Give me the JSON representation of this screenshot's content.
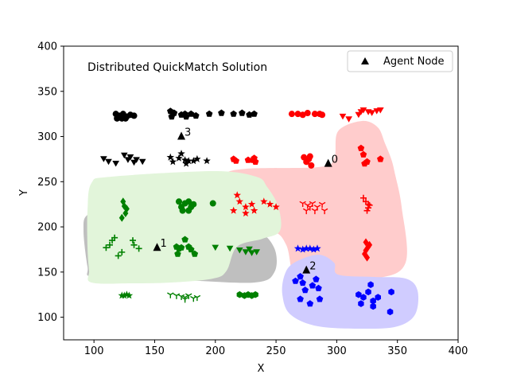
{
  "chart_data": {
    "type": "scatter",
    "title": "Distributed QuickMatch Solution",
    "xlabel": "X",
    "ylabel": "Y",
    "xlim": [
      75,
      400
    ],
    "ylim": [
      75,
      400
    ],
    "xticks": [
      100,
      150,
      200,
      250,
      300,
      350,
      400
    ],
    "yticks": [
      100,
      150,
      200,
      250,
      300,
      350,
      400
    ],
    "grid": false,
    "legend": {
      "placement": "top-right",
      "entries": [
        {
          "label": "Agent Node",
          "marker": "triangle",
          "color": "#000000"
        }
      ]
    },
    "agent_nodes": [
      {
        "label": "0",
        "x": 293,
        "y": 270
      },
      {
        "label": "1",
        "x": 152,
        "y": 177
      },
      {
        "label": "2",
        "x": 275,
        "y": 152
      },
      {
        "label": "3",
        "x": 172,
        "y": 300
      }
    ],
    "regions": [
      {
        "color": "#bfbfbf",
        "outline": [
          [
            115,
            348
          ],
          [
            170,
            350
          ],
          [
            230,
            352
          ],
          [
            320,
            355
          ],
          [
            345,
            342
          ],
          [
            345,
            312
          ],
          [
            322,
            290
          ],
          [
            270,
            287
          ],
          [
            247,
            278
          ],
          [
            208,
            266
          ],
          [
            140,
            263
          ],
          [
            110,
            270
          ],
          [
            105,
            290
          ],
          [
            110,
            335
          ]
        ]
      },
      {
        "color": "#ffcccc",
        "outline": [
          [
            283,
            290
          ],
          [
            340,
            290
          ],
          [
            360,
            308
          ],
          [
            370,
            350
          ],
          [
            392,
            352
          ],
          [
            472,
            350
          ],
          [
            510,
            330
          ],
          [
            505,
            260
          ],
          [
            497,
            220
          ],
          [
            492,
            200
          ],
          [
            484,
            180
          ],
          [
            475,
            160
          ],
          [
            455,
            152
          ],
          [
            425,
            165
          ],
          [
            420,
            200
          ],
          [
            400,
            210
          ],
          [
            310,
            212
          ],
          [
            280,
            220
          ],
          [
            276,
            240
          ],
          [
            278,
            270
          ]
        ]
      },
      {
        "color": "#e2f5da",
        "outline": [
          [
            115,
            355
          ],
          [
            165,
            356
          ],
          [
            215,
            355
          ],
          [
            268,
            350
          ],
          [
            285,
            340
          ],
          [
            298,
            310
          ],
          [
            330,
            300
          ],
          [
            352,
            290
          ],
          [
            350,
            260
          ],
          [
            336,
            235
          ],
          [
            322,
            222
          ],
          [
            268,
            215
          ],
          [
            140,
            222
          ],
          [
            115,
            230
          ],
          [
            110,
            265
          ],
          [
            110,
            310
          ],
          [
            112,
            340
          ]
        ]
      },
      {
        "color": "#d0ccff",
        "outline": [
          [
            370,
            330
          ],
          [
            400,
            320
          ],
          [
            420,
            330
          ],
          [
            425,
            345
          ],
          [
            470,
            348
          ],
          [
            510,
            350
          ],
          [
            525,
            365
          ],
          [
            522,
            395
          ],
          [
            500,
            410
          ],
          [
            460,
            413
          ],
          [
            400,
            410
          ],
          [
            365,
            395
          ],
          [
            355,
            370
          ],
          [
            358,
            345
          ]
        ]
      }
    ],
    "series": [
      {
        "name": "",
        "color": "#000000",
        "marker": "circle",
        "points": [
          [
            118,
            325
          ],
          [
            121,
            323
          ],
          [
            124,
            325
          ],
          [
            127,
            322
          ],
          [
            130,
            324
          ],
          [
            133,
            323
          ],
          [
            119,
            320
          ],
          [
            123,
            320
          ],
          [
            126,
            320
          ]
        ]
      },
      {
        "name": "",
        "color": "#000000",
        "marker": "pentagon",
        "points": [
          [
            163,
            328
          ],
          [
            166,
            326
          ],
          [
            172,
            324
          ],
          [
            175,
            325
          ],
          [
            180,
            325
          ],
          [
            184,
            323
          ],
          [
            195,
            325
          ],
          [
            205,
            326
          ],
          [
            215,
            325
          ],
          [
            222,
            326
          ],
          [
            228,
            324
          ],
          [
            232,
            325
          ],
          [
            164,
            322
          ],
          [
            176,
            322
          ]
        ]
      },
      {
        "name": "",
        "color": "#000000",
        "marker": "triangle_down",
        "points": [
          [
            108,
            276
          ],
          [
            112,
            273
          ],
          [
            118,
            271
          ],
          [
            125,
            280
          ],
          [
            128,
            275
          ],
          [
            130,
            278
          ],
          [
            133,
            272
          ],
          [
            135,
            275
          ],
          [
            140,
            273
          ]
        ]
      },
      {
        "name": "",
        "color": "#000000",
        "marker": "star",
        "points": [
          [
            163,
            277
          ],
          [
            165,
            272
          ],
          [
            170,
            276
          ],
          [
            172,
            281
          ],
          [
            175,
            274
          ],
          [
            178,
            273
          ],
          [
            182,
            273
          ],
          [
            185,
            275
          ],
          [
            193,
            273
          ],
          [
            176,
            270
          ]
        ]
      },
      {
        "name": "",
        "color": "#ff0000",
        "marker": "circle",
        "points": [
          [
            263,
            325
          ],
          [
            268,
            325
          ],
          [
            272,
            324
          ],
          [
            276,
            326
          ],
          [
            282,
            325
          ],
          [
            286,
            325
          ],
          [
            288,
            324
          ],
          [
            275,
            272
          ],
          [
            277,
            275
          ],
          [
            279,
            268
          ],
          [
            273,
            277
          ],
          [
            278,
            278
          ]
        ]
      },
      {
        "name": "",
        "color": "#ff0000",
        "marker": "triangle_down",
        "points": [
          [
            305,
            323
          ],
          [
            310,
            320
          ],
          [
            318,
            325
          ],
          [
            320,
            328
          ],
          [
            322,
            330
          ],
          [
            326,
            328
          ],
          [
            329,
            327
          ],
          [
            333,
            329
          ],
          [
            336,
            330
          ]
        ]
      },
      {
        "name": "",
        "color": "#ff0000",
        "marker": "pentagon",
        "points": [
          [
            215,
            275
          ],
          [
            217,
            273
          ],
          [
            227,
            274
          ],
          [
            231,
            274
          ],
          [
            232,
            276
          ],
          [
            233,
            272
          ],
          [
            336,
            275
          ],
          [
            320,
            287
          ],
          [
            322,
            280
          ],
          [
            323,
            270
          ],
          [
            325,
            272
          ]
        ]
      },
      {
        "name": "",
        "color": "#ff0000",
        "marker": "star",
        "points": [
          [
            218,
            235
          ],
          [
            220,
            228
          ],
          [
            225,
            222
          ],
          [
            230,
            225
          ],
          [
            232,
            218
          ],
          [
            240,
            228
          ],
          [
            245,
            225
          ],
          [
            250,
            222
          ],
          [
            215,
            218
          ],
          [
            225,
            215
          ]
        ]
      },
      {
        "name": "",
        "color": "#ff0000",
        "marker": "tri_down",
        "points": [
          [
            272,
            226
          ],
          [
            276,
            224
          ],
          [
            278,
            222
          ],
          [
            280,
            226
          ],
          [
            284,
            222
          ],
          [
            288,
            225
          ],
          [
            290,
            218
          ],
          [
            275,
            218
          ],
          [
            282,
            218
          ]
        ]
      },
      {
        "name": "",
        "color": "#ff0000",
        "marker": "plus",
        "points": [
          [
            322,
            232
          ],
          [
            324,
            228
          ],
          [
            326,
            225
          ],
          [
            326,
            221
          ],
          [
            325,
            218
          ],
          [
            327,
            224
          ]
        ]
      },
      {
        "name": "",
        "color": "#ff0000",
        "marker": "diamond",
        "points": [
          [
            324,
            183
          ],
          [
            326,
            178
          ],
          [
            324,
            174
          ],
          [
            323,
            170
          ],
          [
            325,
            166
          ],
          [
            327,
            180
          ]
        ]
      },
      {
        "name": "",
        "color": "#008000",
        "marker": "diamond",
        "points": [
          [
            124,
            228
          ],
          [
            125,
            223
          ],
          [
            127,
            220
          ],
          [
            126,
            215
          ],
          [
            123,
            210
          ]
        ]
      },
      {
        "name": "",
        "color": "#008000",
        "marker": "circle",
        "points": [
          [
            170,
            228
          ],
          [
            172,
            222
          ],
          [
            175,
            226
          ],
          [
            178,
            228
          ],
          [
            180,
            222
          ],
          [
            182,
            225
          ],
          [
            173,
            218
          ],
          [
            178,
            218
          ],
          [
            198,
            226
          ]
        ]
      },
      {
        "name": "",
        "color": "#008000",
        "marker": "plus",
        "points": [
          [
            110,
            177
          ],
          [
            113,
            180
          ],
          [
            115,
            185
          ],
          [
            117,
            188
          ],
          [
            120,
            168
          ],
          [
            123,
            172
          ],
          [
            132,
            185
          ],
          [
            133,
            180
          ],
          [
            137,
            176
          ]
        ]
      },
      {
        "name": "",
        "color": "#008000",
        "marker": "pentagon",
        "points": [
          [
            168,
            178
          ],
          [
            170,
            176
          ],
          [
            172,
            177
          ],
          [
            175,
            186
          ],
          [
            178,
            178
          ],
          [
            180,
            175
          ],
          [
            183,
            170
          ],
          [
            169,
            170
          ]
        ]
      },
      {
        "name": "",
        "color": "#008000",
        "marker": "triangle_down",
        "points": [
          [
            200,
            178
          ],
          [
            212,
            177
          ],
          [
            220,
            175
          ],
          [
            225,
            173
          ],
          [
            228,
            176
          ],
          [
            230,
            172
          ],
          [
            234,
            173
          ]
        ]
      },
      {
        "name": "",
        "color": "#008000",
        "marker": "star",
        "points": [
          [
            123,
            124
          ],
          [
            125,
            124
          ],
          [
            127,
            125
          ],
          [
            129,
            124
          ]
        ]
      },
      {
        "name": "",
        "color": "#008000",
        "marker": "tri_down",
        "points": [
          [
            163,
            125
          ],
          [
            168,
            124
          ],
          [
            172,
            123
          ],
          [
            175,
            122
          ],
          [
            178,
            124
          ],
          [
            182,
            121
          ],
          [
            185,
            122
          ],
          [
            175,
            120
          ]
        ]
      },
      {
        "name": "",
        "color": "#008000",
        "marker": "hexagon",
        "points": [
          [
            220,
            125
          ],
          [
            224,
            124
          ],
          [
            227,
            125
          ],
          [
            230,
            124
          ],
          [
            233,
            125
          ]
        ]
      },
      {
        "name": "",
        "color": "#0000ff",
        "marker": "star",
        "points": [
          [
            268,
            176
          ],
          [
            272,
            175
          ],
          [
            275,
            176
          ],
          [
            278,
            176
          ],
          [
            281,
            175
          ],
          [
            284,
            176
          ]
        ]
      },
      {
        "name": "",
        "color": "#0000ff",
        "marker": "pentagon",
        "points": [
          [
            266,
            140
          ],
          [
            270,
            145
          ],
          [
            272,
            138
          ],
          [
            274,
            130
          ],
          [
            280,
            135
          ],
          [
            283,
            142
          ],
          [
            286,
            120
          ],
          [
            270,
            120
          ],
          [
            278,
            115
          ],
          [
            285,
            132
          ]
        ]
      },
      {
        "name": "",
        "color": "#0000ff",
        "marker": "hexagon",
        "points": [
          [
            318,
            125
          ],
          [
            322,
            122
          ],
          [
            326,
            128
          ],
          [
            328,
            136
          ],
          [
            330,
            118
          ],
          [
            334,
            122
          ],
          [
            345,
            128
          ],
          [
            344,
            106
          ],
          [
            330,
            112
          ],
          [
            320,
            115
          ]
        ]
      }
    ]
  }
}
